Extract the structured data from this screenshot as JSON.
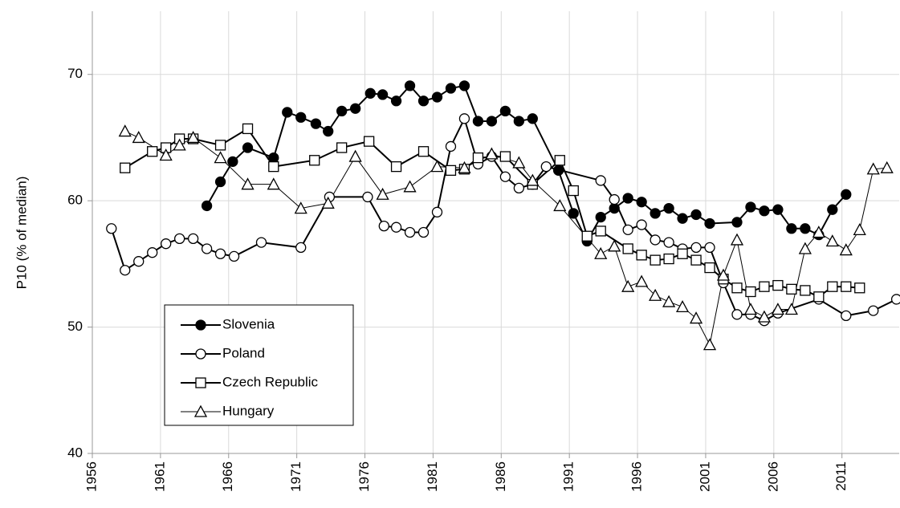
{
  "chart_data": {
    "type": "line",
    "y_label": "P10  (% of median)",
    "xlim": [
      1956,
      2015.2
    ],
    "xticks": [
      1956,
      1961,
      1966,
      1971,
      1976,
      1981,
      1986,
      1991,
      1996,
      2001,
      2006,
      2011
    ],
    "ylim": [
      40,
      75
    ],
    "yticks": [
      40,
      50,
      60,
      70
    ],
    "grid": true,
    "legend": "lower left",
    "series": [
      {
        "name": "Slovenia",
        "color": "#000000",
        "marker": "circle-filled",
        "line_width": 2,
        "x": [
          1964.4,
          1965.4,
          1966.3,
          1967.4,
          1969.3,
          1970.3,
          1971.3,
          1972.4,
          1973.3,
          1974.3,
          1975.3,
          1976.4,
          1977.3,
          1978.3,
          1979.3,
          1980.3,
          1981.3,
          1982.3,
          1983.3,
          1984.3,
          1985.3,
          1986.3,
          1987.3,
          1988.3,
          1990.2,
          1991.3,
          1992.3,
          1993.3,
          1994.3,
          1995.3,
          1996.3,
          1997.3,
          1998.3,
          1999.3,
          2000.3,
          2001.3,
          2003.3,
          2004.3,
          2005.3,
          2006.3,
          2007.3,
          2008.3,
          2009.3,
          2010.3,
          2011.3
        ],
        "values": [
          59.6,
          61.5,
          63.1,
          64.2,
          63.4,
          67.0,
          66.6,
          66.1,
          65.5,
          67.1,
          67.3,
          68.5,
          68.4,
          67.9,
          69.1,
          67.9,
          68.2,
          68.9,
          69.1,
          66.3,
          66.3,
          67.1,
          66.3,
          66.5,
          62.4,
          59.0,
          56.8,
          58.7,
          59.4,
          60.2,
          59.9,
          59.0,
          59.4,
          58.6,
          58.9,
          58.2,
          58.3,
          59.5,
          59.2,
          59.3,
          57.8,
          57.8,
          57.3,
          59.3,
          60.5
        ]
      },
      {
        "name": "Poland",
        "color": "#000000",
        "marker": "circle-open",
        "line_width": 2,
        "x": [
          1957.4,
          1958.4,
          1959.4,
          1960.4,
          1961.4,
          1962.4,
          1963.4,
          1964.4,
          1965.4,
          1966.4,
          1968.4,
          1971.3,
          1973.4,
          1976.2,
          1977.4,
          1978.3,
          1979.3,
          1980.3,
          1981.3,
          1982.3,
          1983.3,
          1984.3,
          1985.3,
          1986.3,
          1987.3,
          1988.3,
          1989.3,
          1993.3,
          1994.3,
          1995.3,
          1996.3,
          1997.3,
          1998.3,
          1999.3,
          2000.3,
          2001.3,
          2002.3,
          2003.3,
          2004.3,
          2005.3,
          2006.3,
          2009.3,
          2011.3,
          2013.3,
          2015.0
        ],
        "values": [
          57.8,
          54.5,
          55.2,
          55.9,
          56.6,
          57.0,
          57.0,
          56.2,
          55.8,
          55.6,
          56.7,
          56.3,
          60.3,
          60.3,
          58.0,
          57.9,
          57.5,
          57.5,
          59.1,
          64.3,
          66.5,
          62.9,
          63.5,
          61.9,
          61.0,
          61.3,
          62.7,
          61.6,
          60.1,
          57.7,
          58.1,
          56.9,
          56.7,
          56.2,
          56.3,
          56.3,
          53.5,
          51.0,
          51.0,
          50.5,
          51.1,
          52.2,
          50.9,
          51.3,
          52.2
        ]
      },
      {
        "name": "Czech Republic",
        "color": "#000000",
        "marker": "square-open",
        "line_width": 2,
        "x": [
          1958.4,
          1960.4,
          1961.4,
          1962.4,
          1963.4,
          1965.4,
          1967.4,
          1969.3,
          1972.3,
          1974.3,
          1976.3,
          1978.3,
          1980.3,
          1982.3,
          1983.3,
          1984.3,
          1986.3,
          1988.3,
          1990.3,
          1991.3,
          1992.3,
          1993.3,
          1995.3,
          1996.3,
          1997.3,
          1998.3,
          1999.3,
          2000.3,
          2001.3,
          2002.3,
          2003.3,
          2004.3,
          2005.3,
          2006.3,
          2007.3,
          2008.3,
          2009.3,
          2010.3,
          2011.3,
          2012.3
        ],
        "values": [
          62.6,
          63.9,
          64.2,
          64.9,
          64.9,
          64.4,
          65.7,
          62.7,
          63.2,
          64.2,
          64.7,
          62.7,
          63.9,
          62.4,
          62.5,
          63.4,
          63.5,
          61.3,
          63.2,
          60.8,
          57.2,
          57.6,
          56.2,
          55.7,
          55.3,
          55.4,
          55.8,
          55.3,
          54.7,
          53.8,
          53.1,
          52.8,
          53.2,
          53.3,
          53.0,
          52.9,
          52.4,
          53.2,
          53.2,
          53.1
        ]
      },
      {
        "name": "Hungary",
        "color": "#000000",
        "marker": "triangle-open",
        "line_width": 1,
        "x": [
          1958.4,
          1959.4,
          1961.4,
          1962.4,
          1963.4,
          1965.4,
          1967.4,
          1969.3,
          1971.3,
          1973.3,
          1975.3,
          1977.3,
          1979.3,
          1981.3,
          1983.3,
          1985.3,
          1987.3,
          1988.3,
          1990.3,
          1993.3,
          1994.3,
          1995.3,
          1996.3,
          1997.3,
          1998.3,
          1999.3,
          2000.3,
          2001.3,
          2002.3,
          2003.3,
          2004.3,
          2005.3,
          2006.3,
          2007.3,
          2008.3,
          2009.3,
          2010.3,
          2011.3,
          2012.3,
          2013.3,
          2014.3
        ],
        "values": [
          65.5,
          65.0,
          63.6,
          64.4,
          65.0,
          63.4,
          61.3,
          61.3,
          59.4,
          59.8,
          63.5,
          60.5,
          61.1,
          62.7,
          62.6,
          63.7,
          63.0,
          61.6,
          59.6,
          55.8,
          56.4,
          53.2,
          53.6,
          52.5,
          52.0,
          51.6,
          50.7,
          48.6,
          54.1,
          56.9,
          51.4,
          50.8,
          51.4,
          51.4,
          56.2,
          57.5,
          56.8,
          56.1,
          57.7,
          62.5,
          62.6
        ]
      }
    ]
  }
}
